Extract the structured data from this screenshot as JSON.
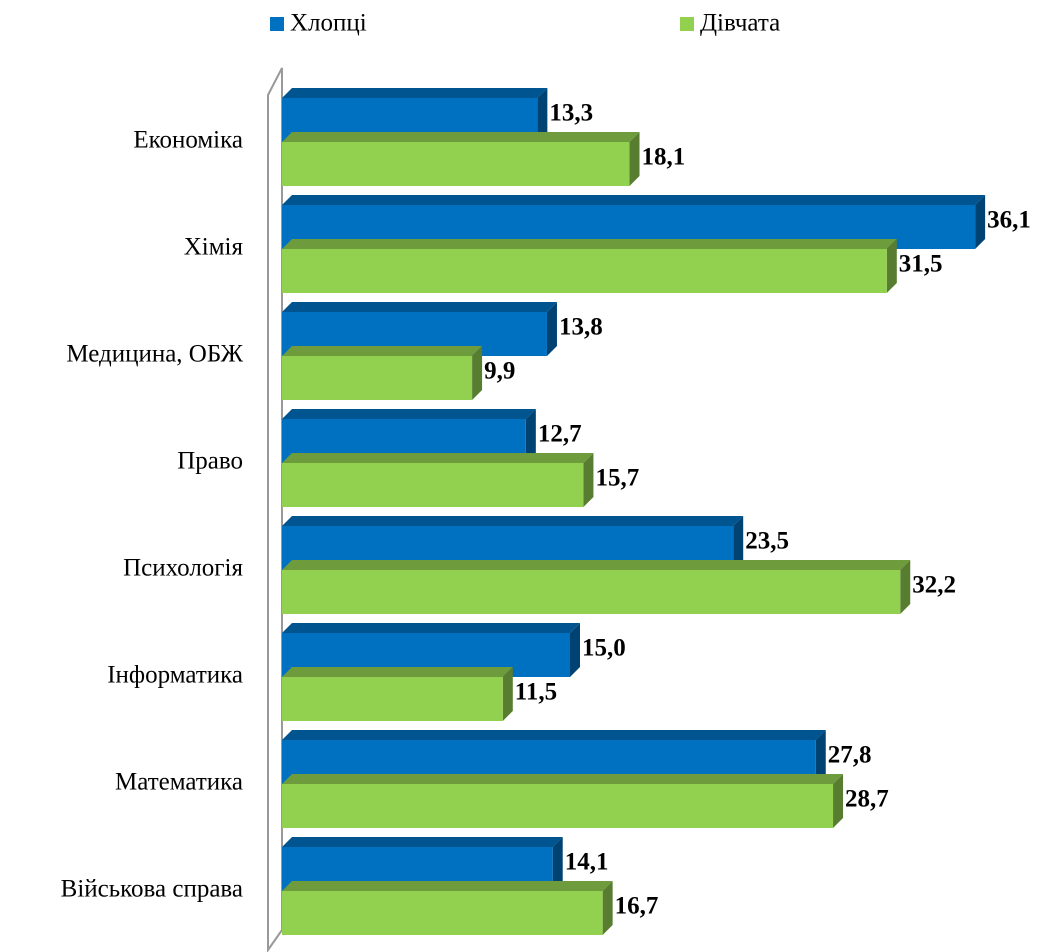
{
  "chart_data": {
    "type": "bar",
    "orientation": "horizontal",
    "categories": [
      "Економіка",
      "Хімія",
      "Медицина, ОБЖ",
      "Право",
      "Психологія",
      "Інформатика",
      "Математика",
      "Військова справа"
    ],
    "series": [
      {
        "name": "Хлопці",
        "color": "#0070c0",
        "values": [
          13.3,
          36.1,
          13.8,
          12.7,
          23.5,
          15.0,
          27.8,
          14.1
        ],
        "value_labels": [
          "13,3",
          "36,1",
          "13,8",
          "12,7",
          "23,5",
          "15,0",
          "27,8",
          "14,1"
        ]
      },
      {
        "name": "Дівчата",
        "color": "#92d050",
        "values": [
          18.1,
          31.5,
          9.9,
          15.7,
          32.2,
          11.5,
          28.7,
          16.7
        ],
        "value_labels": [
          "18,1",
          "31,5",
          "9,9",
          "15,7",
          "32,2",
          "11,5",
          "28,7",
          "16,7"
        ]
      }
    ],
    "xlim": [
      0,
      40
    ],
    "legend": "top"
  }
}
